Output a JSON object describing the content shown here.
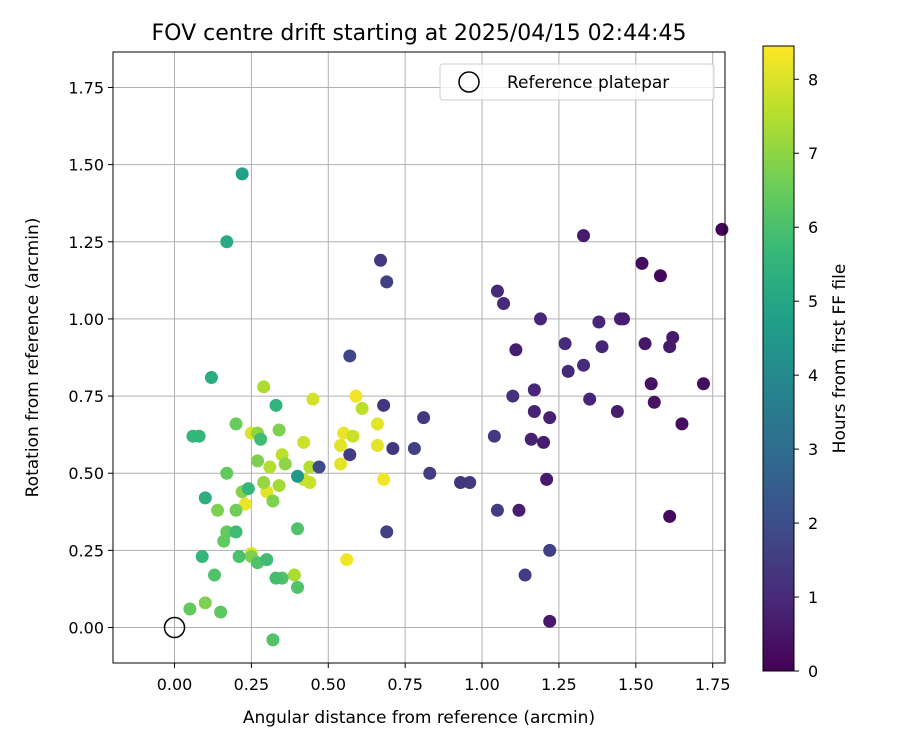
{
  "chart_data": {
    "type": "scatter",
    "title": "FOV centre drift starting at 2025/04/15 02:44:45",
    "xlabel": "Angular distance from reference (arcmin)",
    "ylabel": "Rotation from reference (arcmin)",
    "xlim": [
      -0.2,
      1.79
    ],
    "ylim": [
      -0.115,
      1.865
    ],
    "x_ticks": [
      "0.00",
      "0.25",
      "0.50",
      "0.75",
      "1.00",
      "1.25",
      "1.50",
      "1.75"
    ],
    "x_tick_values": [
      0,
      0.25,
      0.5,
      0.75,
      1.0,
      1.25,
      1.5,
      1.75
    ],
    "y_ticks": [
      "0.00",
      "0.25",
      "0.50",
      "0.75",
      "1.00",
      "1.25",
      "1.50",
      "1.75"
    ],
    "y_tick_values": [
      0,
      0.25,
      0.5,
      0.75,
      1.0,
      1.25,
      1.5,
      1.75
    ],
    "grid": true,
    "legend": {
      "placement": "top-right",
      "label": "Reference platepar"
    },
    "reference_point": {
      "x": 0,
      "y": 0
    },
    "colorbar": {
      "label": "Hours from first FF file",
      "range": [
        0,
        8.45
      ],
      "ticks": [
        "0",
        "1",
        "2",
        "3",
        "4",
        "5",
        "6",
        "7",
        "8"
      ],
      "tick_values": [
        0,
        1,
        2,
        3,
        4,
        5,
        6,
        7,
        8
      ],
      "colormap": "viridis"
    },
    "points": [
      {
        "x": 1.78,
        "y": 1.29,
        "h": 0.1
      },
      {
        "x": 1.58,
        "y": 1.14,
        "h": 0.2
      },
      {
        "x": 1.52,
        "y": 1.18,
        "h": 0.3
      },
      {
        "x": 1.33,
        "y": 1.27,
        "h": 0.6
      },
      {
        "x": 1.72,
        "y": 0.79,
        "h": 0.3
      },
      {
        "x": 1.65,
        "y": 0.66,
        "h": 0.3
      },
      {
        "x": 1.62,
        "y": 0.94,
        "h": 0.6
      },
      {
        "x": 1.61,
        "y": 0.91,
        "h": 0.6
      },
      {
        "x": 1.56,
        "y": 0.73,
        "h": 0.4
      },
      {
        "x": 1.55,
        "y": 0.79,
        "h": 0.4
      },
      {
        "x": 1.61,
        "y": 0.36,
        "h": 0.2
      },
      {
        "x": 1.53,
        "y": 0.92,
        "h": 0.5
      },
      {
        "x": 1.46,
        "y": 1.0,
        "h": 0.7
      },
      {
        "x": 1.45,
        "y": 1.0,
        "h": 0.8
      },
      {
        "x": 1.44,
        "y": 0.7,
        "h": 0.7
      },
      {
        "x": 1.38,
        "y": 0.99,
        "h": 0.9
      },
      {
        "x": 1.39,
        "y": 0.91,
        "h": 0.9
      },
      {
        "x": 1.35,
        "y": 0.74,
        "h": 0.9
      },
      {
        "x": 1.27,
        "y": 0.92,
        "h": 1.0
      },
      {
        "x": 1.33,
        "y": 0.85,
        "h": 1.0
      },
      {
        "x": 1.28,
        "y": 0.83,
        "h": 1.0
      },
      {
        "x": 1.19,
        "y": 1.0,
        "h": 0.9
      },
      {
        "x": 1.22,
        "y": 0.68,
        "h": 0.8
      },
      {
        "x": 1.17,
        "y": 0.77,
        "h": 0.9
      },
      {
        "x": 1.17,
        "y": 0.7,
        "h": 0.8
      },
      {
        "x": 1.16,
        "y": 0.61,
        "h": 0.8
      },
      {
        "x": 1.2,
        "y": 0.6,
        "h": 0.7
      },
      {
        "x": 1.21,
        "y": 0.48,
        "h": 0.6
      },
      {
        "x": 1.22,
        "y": 0.02,
        "h": 0.6
      },
      {
        "x": 1.12,
        "y": 0.38,
        "h": 0.7
      },
      {
        "x": 1.11,
        "y": 0.9,
        "h": 0.7
      },
      {
        "x": 1.05,
        "y": 1.09,
        "h": 1.0
      },
      {
        "x": 1.07,
        "y": 1.05,
        "h": 1.0
      },
      {
        "x": 1.1,
        "y": 0.75,
        "h": 1.2
      },
      {
        "x": 1.04,
        "y": 0.62,
        "h": 1.4
      },
      {
        "x": 1.22,
        "y": 0.25,
        "h": 1.6
      },
      {
        "x": 1.14,
        "y": 0.17,
        "h": 1.5
      },
      {
        "x": 1.05,
        "y": 0.38,
        "h": 1.5
      },
      {
        "x": 0.96,
        "y": 0.47,
        "h": 1.4
      },
      {
        "x": 0.93,
        "y": 0.47,
        "h": 1.3
      },
      {
        "x": 0.83,
        "y": 0.5,
        "h": 1.5
      },
      {
        "x": 0.81,
        "y": 0.68,
        "h": 1.4
      },
      {
        "x": 0.78,
        "y": 0.58,
        "h": 1.6
      },
      {
        "x": 0.71,
        "y": 0.58,
        "h": 1.3
      },
      {
        "x": 0.69,
        "y": 0.31,
        "h": 1.6
      },
      {
        "x": 0.68,
        "y": 0.72,
        "h": 1.3
      },
      {
        "x": 0.69,
        "y": 1.12,
        "h": 1.6
      },
      {
        "x": 0.67,
        "y": 1.19,
        "h": 1.4
      },
      {
        "x": 0.57,
        "y": 0.88,
        "h": 1.8
      },
      {
        "x": 0.57,
        "y": 0.56,
        "h": 1.5
      },
      {
        "x": 0.47,
        "y": 0.52,
        "h": 1.9
      },
      {
        "x": 0.4,
        "y": 0.49,
        "h": 4.5
      },
      {
        "x": 0.22,
        "y": 1.47,
        "h": 4.8
      },
      {
        "x": 0.17,
        "y": 1.25,
        "h": 5.1
      },
      {
        "x": 0.12,
        "y": 0.81,
        "h": 5.2
      },
      {
        "x": 0.33,
        "y": 0.72,
        "h": 5.5
      },
      {
        "x": 0.08,
        "y": 0.62,
        "h": 5.6
      },
      {
        "x": 0.1,
        "y": 0.42,
        "h": 5.3
      },
      {
        "x": 0.09,
        "y": 0.23,
        "h": 5.6
      },
      {
        "x": 0.2,
        "y": 0.31,
        "h": 5.8
      },
      {
        "x": 0.24,
        "y": 0.45,
        "h": 5.6
      },
      {
        "x": 0.28,
        "y": 0.61,
        "h": 5.8
      },
      {
        "x": 0.3,
        "y": 0.22,
        "h": 5.8
      },
      {
        "x": 0.4,
        "y": 0.32,
        "h": 6.1
      },
      {
        "x": 0.4,
        "y": 0.13,
        "h": 6.1
      },
      {
        "x": 0.32,
        "y": -0.04,
        "h": 6.1
      },
      {
        "x": 0.33,
        "y": 0.16,
        "h": 5.9
      },
      {
        "x": 0.35,
        "y": 0.16,
        "h": 6.1
      },
      {
        "x": 0.27,
        "y": 0.21,
        "h": 6.1
      },
      {
        "x": 0.21,
        "y": 0.23,
        "h": 6.0
      },
      {
        "x": 0.17,
        "y": 0.31,
        "h": 6.4
      },
      {
        "x": 0.14,
        "y": 0.38,
        "h": 6.8
      },
      {
        "x": 0.13,
        "y": 0.17,
        "h": 6.1
      },
      {
        "x": 0.16,
        "y": 0.28,
        "h": 6.4
      },
      {
        "x": 0.17,
        "y": 0.5,
        "h": 6.4
      },
      {
        "x": 0.2,
        "y": 0.66,
        "h": 6.5
      },
      {
        "x": 0.2,
        "y": 0.38,
        "h": 6.6
      },
      {
        "x": 0.25,
        "y": 0.23,
        "h": 6.8
      },
      {
        "x": 0.22,
        "y": 0.44,
        "h": 6.9
      },
      {
        "x": 0.27,
        "y": 0.54,
        "h": 6.8
      },
      {
        "x": 0.27,
        "y": 0.63,
        "h": 7.0
      },
      {
        "x": 0.31,
        "y": 0.52,
        "h": 7.5
      },
      {
        "x": 0.34,
        "y": 0.64,
        "h": 6.8
      },
      {
        "x": 0.32,
        "y": 0.41,
        "h": 6.8
      },
      {
        "x": 0.36,
        "y": 0.53,
        "h": 7.0
      },
      {
        "x": 0.34,
        "y": 0.46,
        "h": 7.3
      },
      {
        "x": 0.29,
        "y": 0.47,
        "h": 7.1
      },
      {
        "x": 0.29,
        "y": 0.78,
        "h": 7.4
      },
      {
        "x": 0.35,
        "y": 0.56,
        "h": 7.6
      },
      {
        "x": 0.39,
        "y": 0.17,
        "h": 7.4
      },
      {
        "x": 0.42,
        "y": 0.6,
        "h": 7.8
      },
      {
        "x": 0.44,
        "y": 0.52,
        "h": 7.5
      },
      {
        "x": 0.42,
        "y": 0.48,
        "h": 7.8
      },
      {
        "x": 0.44,
        "y": 0.47,
        "h": 7.8
      },
      {
        "x": 0.45,
        "y": 0.74,
        "h": 7.9
      },
      {
        "x": 0.25,
        "y": 0.63,
        "h": 8.0
      },
      {
        "x": 0.23,
        "y": 0.4,
        "h": 8.2
      },
      {
        "x": 0.3,
        "y": 0.44,
        "h": 8.1
      },
      {
        "x": 0.54,
        "y": 0.53,
        "h": 8.1
      },
      {
        "x": 0.55,
        "y": 0.63,
        "h": 8.2
      },
      {
        "x": 0.58,
        "y": 0.62,
        "h": 7.8
      },
      {
        "x": 0.54,
        "y": 0.59,
        "h": 8.1
      },
      {
        "x": 0.61,
        "y": 0.71,
        "h": 7.6
      },
      {
        "x": 0.59,
        "y": 0.75,
        "h": 8.3
      },
      {
        "x": 0.66,
        "y": 0.66,
        "h": 8.1
      },
      {
        "x": 0.66,
        "y": 0.59,
        "h": 8.1
      },
      {
        "x": 0.68,
        "y": 0.48,
        "h": 8.3
      },
      {
        "x": 0.56,
        "y": 0.22,
        "h": 8.3
      },
      {
        "x": 0.05,
        "y": 0.06,
        "h": 6.4
      },
      {
        "x": 0.1,
        "y": 0.08,
        "h": 6.8
      },
      {
        "x": 0.15,
        "y": 0.05,
        "h": 6.3
      },
      {
        "x": 0.06,
        "y": 0.62,
        "h": 5.6
      },
      {
        "x": 0.25,
        "y": 0.24,
        "h": 8.0
      }
    ]
  }
}
